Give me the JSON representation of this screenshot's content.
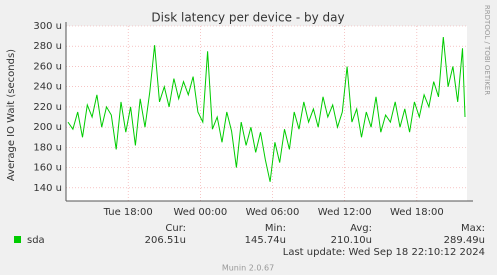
{
  "chart_data": {
    "type": "line",
    "title": "Disk latency per device - by day",
    "y_label": "Average IO Wait (seconds)",
    "side_text": "RRDTOOL / TOBI OETIKER",
    "x": [
      13.0,
      13.4,
      13.8,
      14.2,
      14.6,
      15.0,
      15.4,
      15.8,
      16.2,
      16.6,
      17.0,
      17.4,
      17.8,
      18.2,
      18.6,
      19.0,
      19.4,
      19.8,
      20.2,
      20.6,
      21.0,
      21.4,
      21.8,
      22.2,
      22.6,
      23.0,
      23.4,
      23.8,
      24.2,
      24.6,
      25.0,
      25.4,
      25.8,
      26.2,
      26.6,
      27.0,
      27.4,
      27.8,
      28.2,
      28.6,
      29.0,
      29.4,
      29.8,
      30.2,
      30.6,
      31.0,
      31.4,
      31.8,
      32.2,
      32.6,
      33.0,
      33.4,
      33.8,
      34.2,
      34.6,
      35.0,
      35.4,
      35.8,
      36.2,
      36.6,
      37.0,
      37.4,
      37.8,
      38.2,
      38.6,
      39.0,
      39.4,
      39.8,
      40.2,
      40.6,
      41.0,
      41.4,
      41.8,
      42.2,
      42.6,
      43.0,
      43.4,
      43.8,
      44.2,
      44.6,
      45.0,
      45.4,
      45.8,
      46.0
    ],
    "series": [
      {
        "name": "sda",
        "color": "#00cc00",
        "values": [
          205,
          198,
          215,
          190,
          222,
          210,
          232,
          200,
          220,
          212,
          178,
          225,
          195,
          220,
          182,
          228,
          200,
          235,
          281,
          225,
          240,
          220,
          248,
          228,
          245,
          232,
          250,
          215,
          205,
          275,
          198,
          210,
          185,
          215,
          196,
          160,
          205,
          182,
          200,
          175,
          195,
          168,
          146,
          185,
          165,
          198,
          178,
          215,
          198,
          225,
          205,
          218,
          200,
          230,
          210,
          222,
          200,
          215,
          260,
          205,
          218,
          190,
          215,
          200,
          230,
          195,
          212,
          205,
          225,
          200,
          218,
          195,
          225,
          210,
          232,
          220,
          245,
          230,
          289,
          240,
          260,
          225,
          278,
          210
        ]
      }
    ],
    "xlim": [
      12.83,
      46.17
    ],
    "xticks": [
      {
        "value": 18,
        "label": "Tue 18:00"
      },
      {
        "value": 24,
        "label": "Wed 00:00"
      },
      {
        "value": 30,
        "label": "Wed 06:00"
      },
      {
        "value": 36,
        "label": "Wed 12:00"
      },
      {
        "value": 42,
        "label": "Wed 18:00"
      }
    ],
    "ylim": [
      127,
      300
    ],
    "yticks": [
      {
        "value": 140,
        "label": "140 u"
      },
      {
        "value": 160,
        "label": "160 u"
      },
      {
        "value": 180,
        "label": "180 u"
      },
      {
        "value": 200,
        "label": "200 u"
      },
      {
        "value": 220,
        "label": "220 u"
      },
      {
        "value": 240,
        "label": "240 u"
      },
      {
        "value": 260,
        "label": "260 u"
      },
      {
        "value": 280,
        "label": "280 u"
      },
      {
        "value": 300,
        "label": "300 u"
      }
    ],
    "grid": true,
    "stats": [
      {
        "label": "Cur:",
        "text": "206.51u"
      },
      {
        "label": "Min:",
        "text": "145.74u"
      },
      {
        "label": "Avg:",
        "text": "210.10u"
      },
      {
        "label": "Max:",
        "text": "289.49u"
      }
    ],
    "last_update": "Last update: Wed Sep 18 22:10:12 2024",
    "footer": "Munin 2.0.67"
  }
}
